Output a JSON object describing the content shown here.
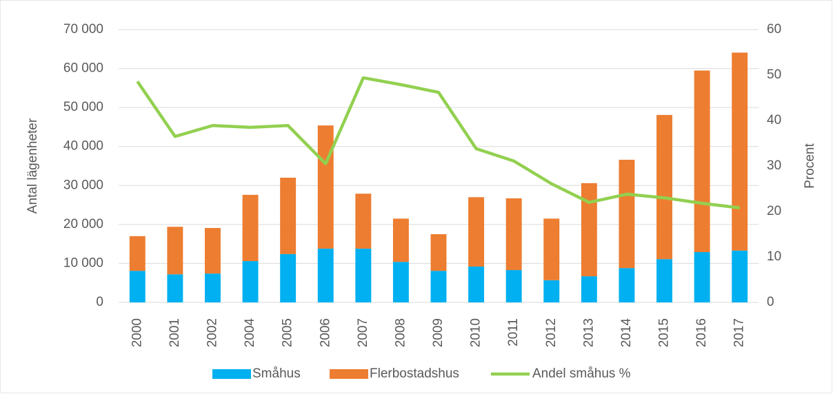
{
  "chart_data": {
    "type": "bar",
    "categories": [
      "2000",
      "2001",
      "2002",
      "2004",
      "2005",
      "2006",
      "2007",
      "2008",
      "2009",
      "2010",
      "2011",
      "2012",
      "2013",
      "2014",
      "2015",
      "2016",
      "2017"
    ],
    "series": [
      {
        "name": "Småhus",
        "color": "#00b0f0",
        "type": "bar",
        "values": [
          8100,
          7200,
          7400,
          10600,
          12400,
          13800,
          13800,
          10400,
          8100,
          9200,
          8300,
          5700,
          6700,
          8800,
          11100,
          12900,
          13300
        ]
      },
      {
        "name": "Flerbostadshus",
        "color": "#ed7d31",
        "type": "bar",
        "values": [
          8900,
          12200,
          11700,
          17000,
          19600,
          31600,
          14100,
          11100,
          9400,
          17800,
          18400,
          15800,
          23900,
          27800,
          37000,
          46600,
          50800
        ]
      },
      {
        "name": "Andel småhus %",
        "color": "#92d050",
        "type": "line",
        "axis": "y2",
        "values": [
          48.6,
          36.5,
          38.9,
          38.5,
          38.9,
          30.5,
          49.4,
          47.9,
          46.2,
          33.8,
          31.1,
          26.1,
          22.0,
          23.8,
          23.0,
          21.8,
          20.8
        ]
      }
    ],
    "ylabel": "Antal lägenheter",
    "y2label": "Procent",
    "ylim": [
      0,
      70000
    ],
    "yticks": [
      0,
      {
        "value": 10000,
        "label": "10 000"
      },
      {
        "value": 20000,
        "label": "20 000"
      },
      {
        "value": 30000,
        "label": "30 000"
      },
      {
        "value": 40000,
        "label": "40 000"
      },
      {
        "value": 50000,
        "label": "50 000"
      },
      {
        "value": 60000,
        "label": "60 000"
      },
      {
        "value": 70000,
        "label": "70 000"
      }
    ],
    "y2lim": [
      0,
      60
    ],
    "y2ticks": [
      0,
      10,
      20,
      30,
      40,
      50,
      60
    ],
    "stacked": true,
    "grid": true,
    "legend": "bottom"
  }
}
